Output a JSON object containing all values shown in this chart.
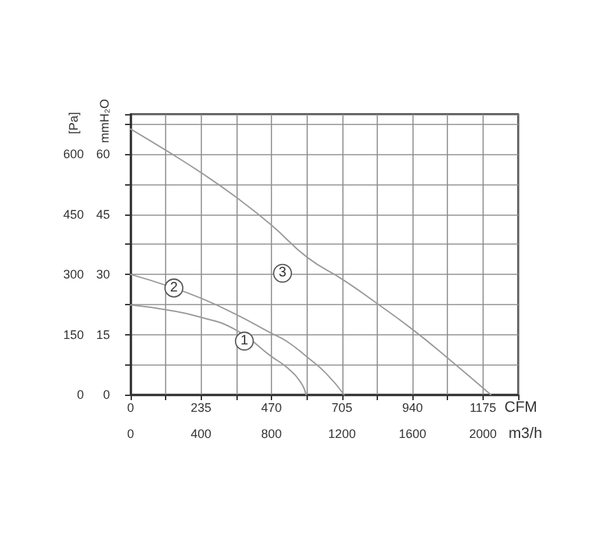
{
  "chart_data": {
    "type": "line",
    "xlabel": "CFM",
    "x2label": "m3/h",
    "ylabel": "[Pa]",
    "y2label": "mmH₂O",
    "xlim": [
      0,
      1292.5
    ],
    "xticks": [
      0,
      {
        "value": 117.5,
        "label": null
      },
      235,
      {
        "value": 352.5,
        "label": null
      },
      470,
      {
        "value": 587.5,
        "label": null
      },
      705,
      {
        "value": 822.5,
        "label": null
      },
      940,
      {
        "value": 1057.5,
        "label": null
      },
      1175
    ],
    "x2lim": [
      0,
      2200
    ],
    "x2ticks": [
      0,
      400,
      800,
      1200,
      1600,
      2000
    ],
    "ylim": [
      0,
      700
    ],
    "yticks": [
      0,
      {
        "value": 75,
        "label": null
      },
      150,
      {
        "value": 225,
        "label": null
      },
      300,
      {
        "value": 375,
        "label": null
      },
      450,
      {
        "value": 525,
        "label": null
      },
      600,
      {
        "value": 675,
        "label": null
      }
    ],
    "y2lim": [
      0,
      70
    ],
    "y2ticks": [
      0,
      15,
      30,
      45,
      60
    ],
    "grid": true,
    "marker": "none",
    "line_style": "solid",
    "series": [
      {
        "name": "1",
        "color": "#9a9a9a",
        "x": [
          0,
          117,
          235,
          352,
          470,
          521,
          567,
          585
        ],
        "values": [
          224,
          212,
          193,
          161,
          95,
          68,
          31,
          0
        ]
      },
      {
        "name": "2",
        "color": "#9a9a9a",
        "x": [
          0,
          117,
          237,
          352,
          470,
          521,
          590,
          652,
          712
        ],
        "values": [
          300,
          273,
          240,
          200,
          153,
          133,
          93,
          53,
          0
        ]
      },
      {
        "name": "3",
        "color": "#9a9a9a",
        "x": [
          0,
          117,
          237,
          355,
          470,
          590,
          710,
          823,
          943,
          1058,
          1201
        ],
        "values": [
          663,
          610,
          553,
          491,
          423,
          342,
          286,
          227,
          161,
          91,
          0
        ]
      }
    ]
  }
}
